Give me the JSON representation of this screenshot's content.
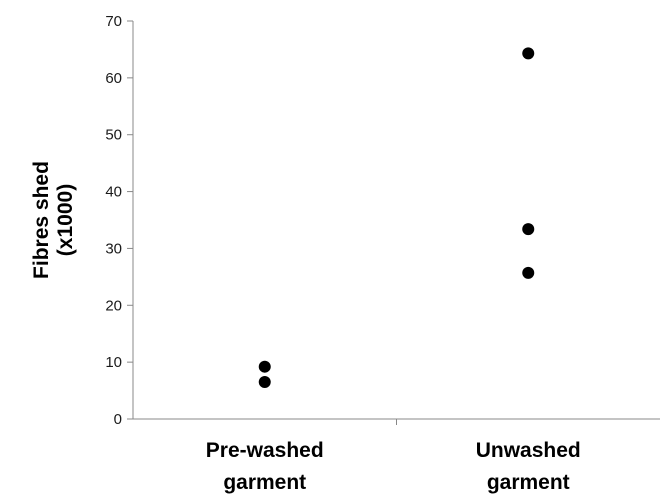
{
  "chart_data": {
    "type": "scatter",
    "categories": [
      "Pre-washed garment",
      "Unwashed garment"
    ],
    "category_label_lines": [
      [
        "Pre-washed",
        "garment"
      ],
      [
        "Unwashed",
        "garment"
      ]
    ],
    "ylabel_lines": [
      "Fibres shed",
      "(x1000)"
    ],
    "ylim": [
      0,
      70
    ],
    "yticks": [
      0,
      10,
      20,
      30,
      40,
      50,
      60,
      70
    ],
    "grid": false,
    "points": [
      {
        "category": "Pre-washed garment",
        "y": 9.2
      },
      {
        "category": "Pre-washed garment",
        "y": 6.5
      },
      {
        "category": "Unwashed garment",
        "y": 64.3
      },
      {
        "category": "Unwashed garment",
        "y": 33.4
      },
      {
        "category": "Unwashed garment",
        "y": 25.7
      }
    ],
    "marker_color": "#000000",
    "axis_color": "#888888"
  }
}
